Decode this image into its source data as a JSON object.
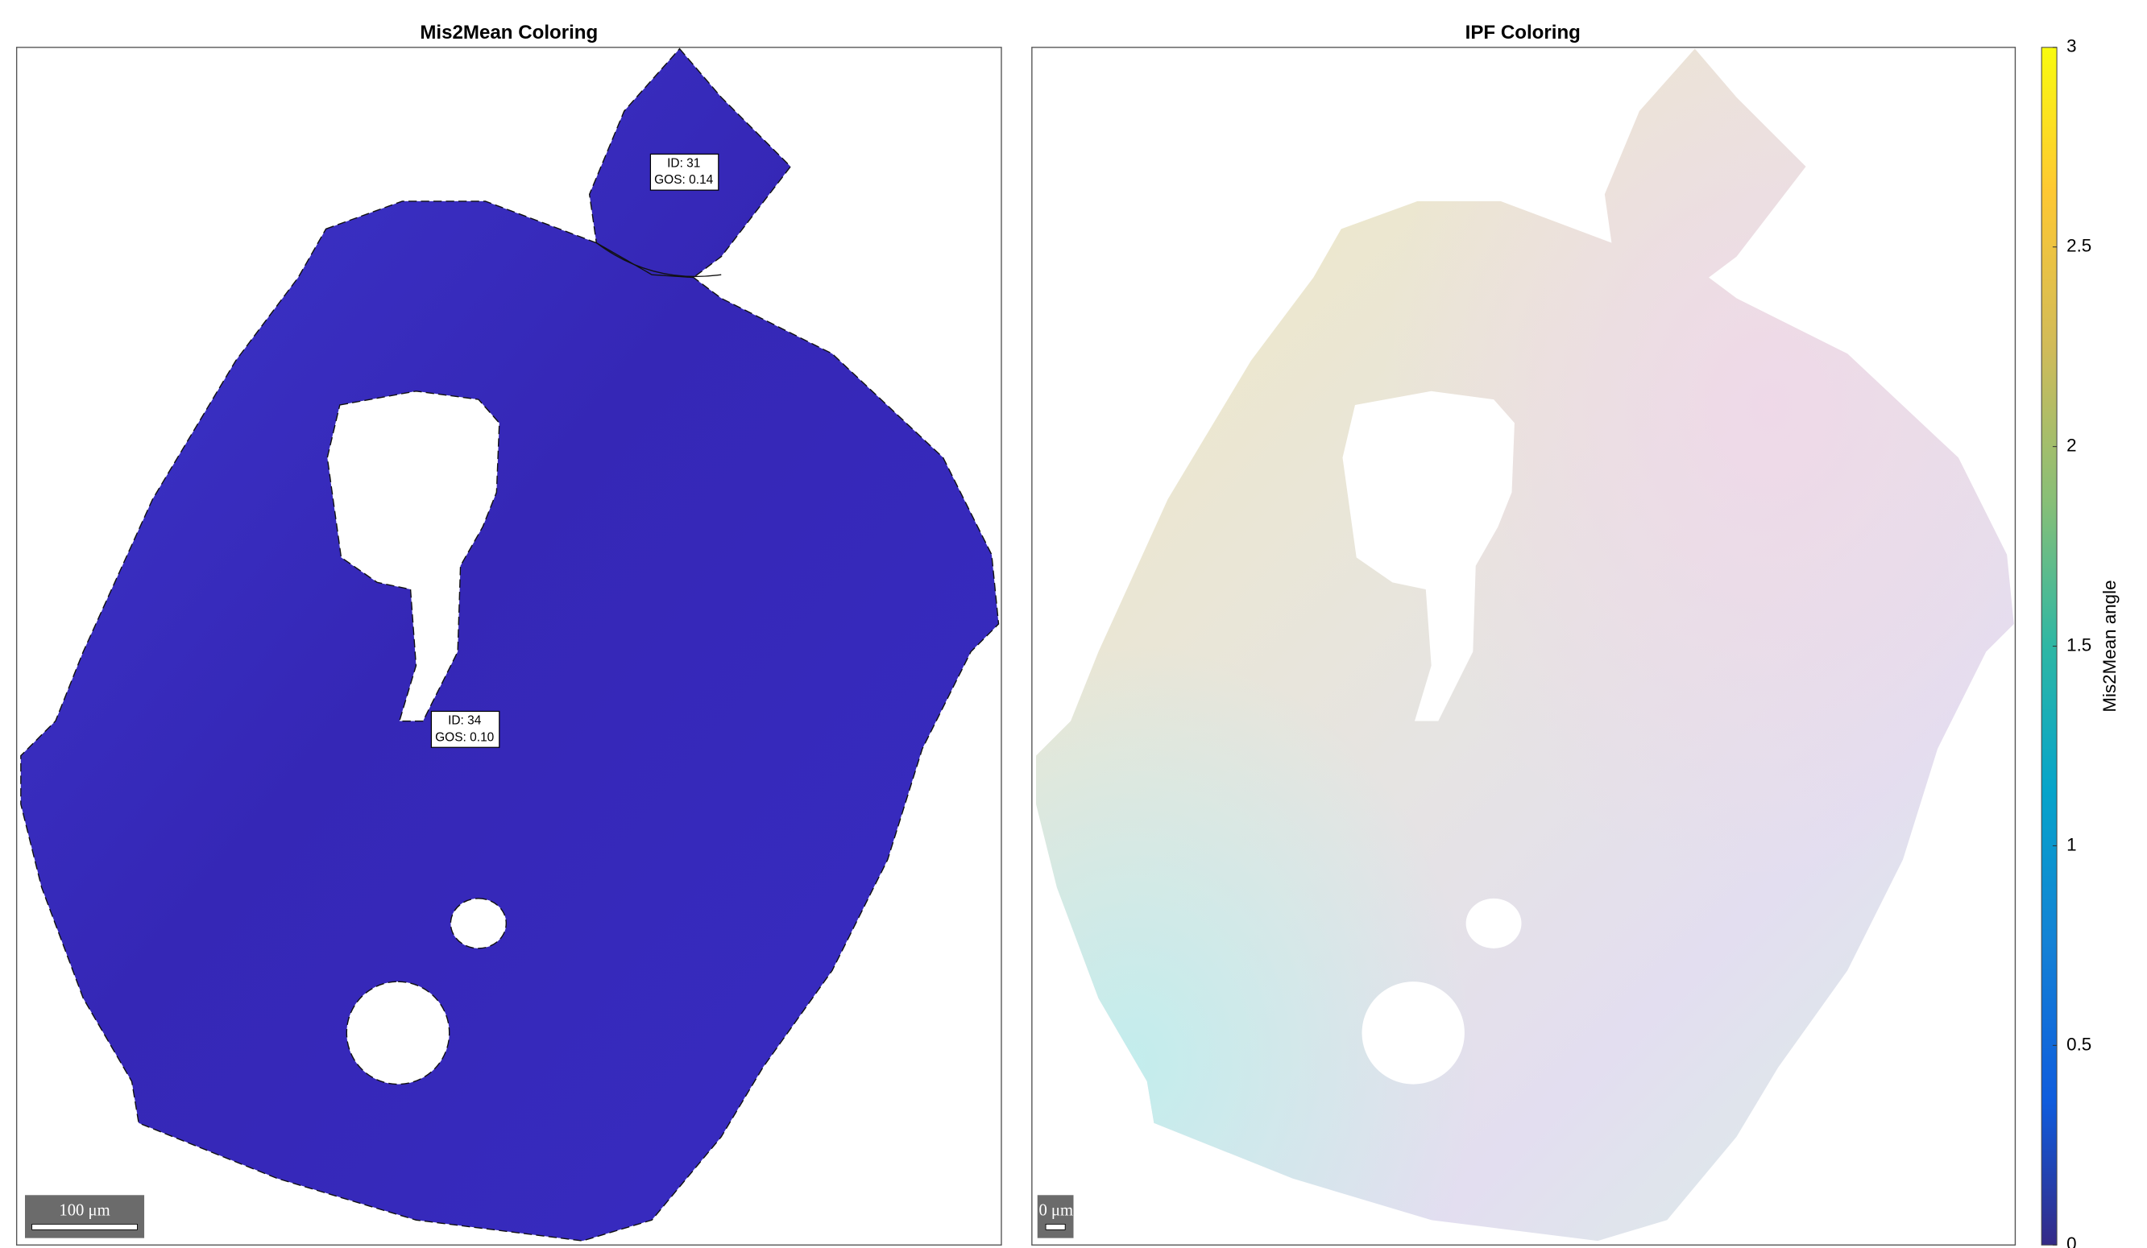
{
  "chart_data": {
    "type": "map",
    "panels": [
      {
        "title": "Mis2Mean Coloring",
        "scalebar": "100 μm",
        "annotations": [
          [
            "ID: 31",
            "GOS: 0.14"
          ],
          [
            "ID: 34",
            "GOS: 0.10"
          ]
        ]
      },
      {
        "title": "IPF Coloring",
        "scalebar": "0 μm"
      }
    ],
    "colorbar": {
      "label": "Mis2Mean angle",
      "clim": [
        0,
        3
      ],
      "ticks": [
        0,
        0.5,
        1,
        1.5,
        2,
        2.5,
        3
      ],
      "colormap": "parula"
    }
  }
}
